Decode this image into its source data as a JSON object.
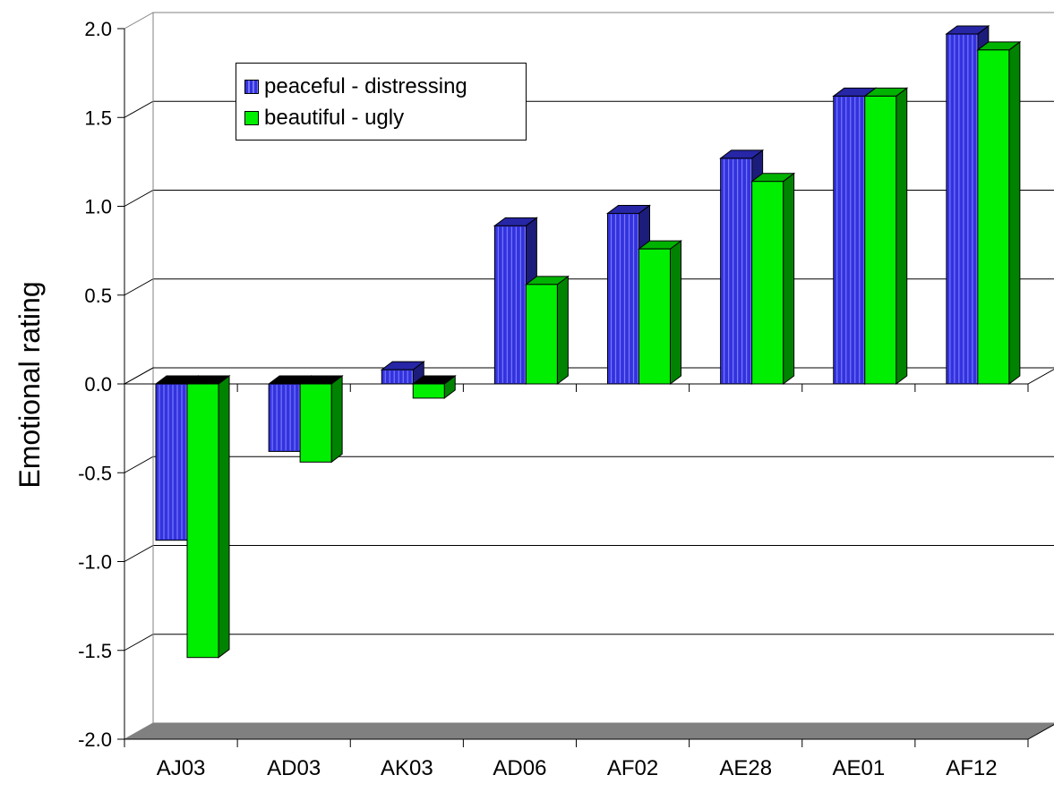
{
  "chart_data": {
    "type": "bar",
    "title": "",
    "xlabel": "",
    "ylabel": "Emotional rating",
    "ylim": [
      -2.0,
      2.0
    ],
    "yticks": [
      "2.0",
      "1.5",
      "1.0",
      "0.5",
      "0.0",
      "-0.5",
      "-1.0",
      "-1.5",
      "-2.0"
    ],
    "grid": true,
    "legend_position": "top-left",
    "categories": [
      "AJ03",
      "AD03",
      "AK03",
      "AD06",
      "AF02",
      "AE28",
      "AE01",
      "AF12"
    ],
    "series": [
      {
        "name": "peaceful - distressing",
        "color": "#3333dd",
        "values": [
          -0.88,
          -0.38,
          0.08,
          0.89,
          0.96,
          1.27,
          1.62,
          1.97
        ]
      },
      {
        "name": "beautiful - ugly",
        "color": "#00ee00",
        "values": [
          -1.54,
          -0.44,
          -0.08,
          0.56,
          0.76,
          1.14,
          1.62,
          1.88
        ]
      }
    ]
  }
}
